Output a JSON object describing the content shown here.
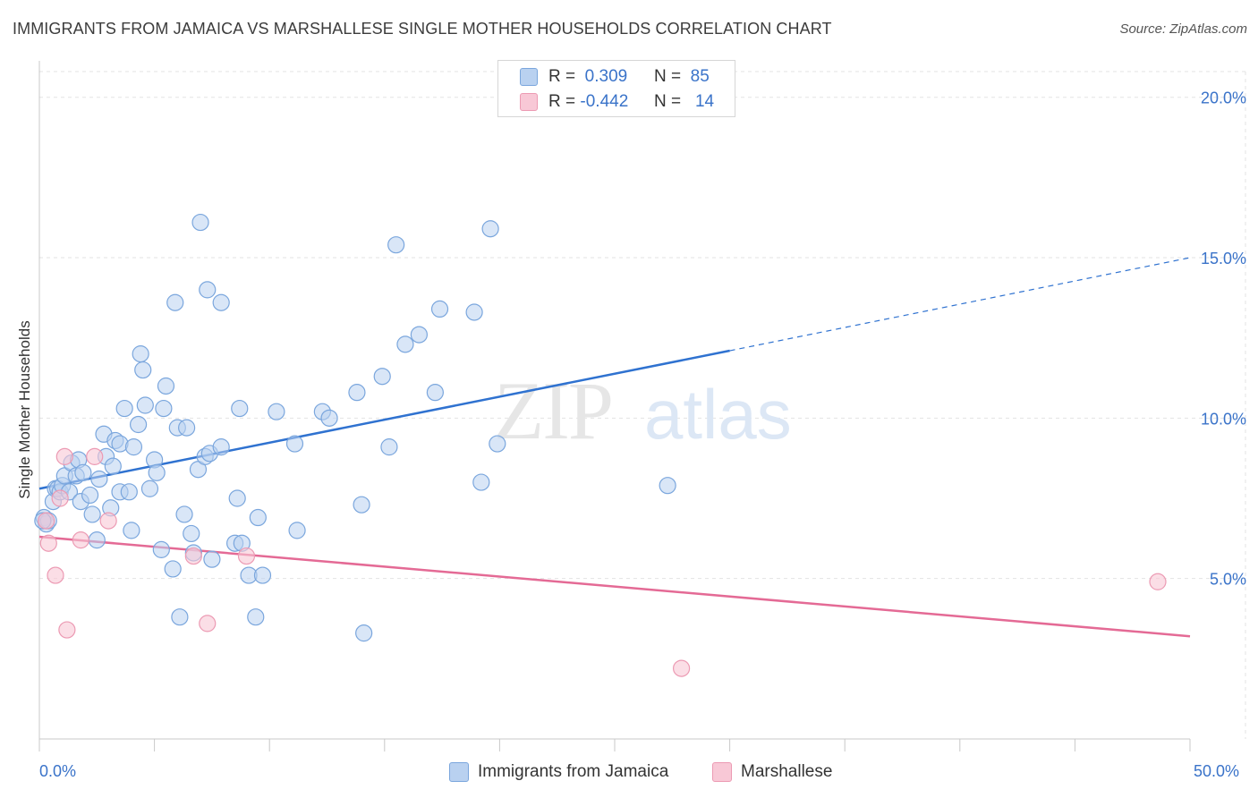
{
  "header": {
    "title": "IMMIGRANTS FROM JAMAICA VS MARSHALLESE SINGLE MOTHER HOUSEHOLDS CORRELATION CHART",
    "source": "Source: ZipAtlas.com"
  },
  "legend_top": {
    "row1": {
      "r_label": "R =",
      "r_value": "0.309",
      "n_label": "N =",
      "n_value": "85"
    },
    "row2": {
      "r_label": "R =",
      "r_value": "-0.442",
      "n_label": "N =",
      "n_value": "14"
    }
  },
  "watermark": {
    "part1": "ZIP",
    "part2": "atlas"
  },
  "colors": {
    "blue_fill": "#b9d1f0",
    "blue_stroke": "#7aa6dd",
    "blue_line": "#2f72d0",
    "pink_fill": "#f8c8d6",
    "pink_stroke": "#ec9ab3",
    "pink_line": "#e46a95",
    "axis_text": "#3a73c9",
    "grid": "#e3e3e3"
  },
  "chart_data": {
    "type": "scatter",
    "title": "IMMIGRANTS FROM JAMAICA VS MARSHALLESE SINGLE MOTHER HOUSEHOLDS CORRELATION CHART",
    "xlabel": "",
    "ylabel": "Single Mother Households",
    "xlim": [
      0,
      50
    ],
    "ylim": [
      0,
      20.8
    ],
    "x_tick_labels": [
      "0.0%",
      "50.0%"
    ],
    "y_ticks": [
      5,
      10,
      15,
      20
    ],
    "y_tick_labels": [
      "5.0%",
      "10.0%",
      "15.0%",
      "20.0%"
    ],
    "grid": true,
    "legend_position": "bottom",
    "series": [
      {
        "name": "Immigrants from Jamaica",
        "color": "#b9d1f0",
        "r": 0.309,
        "n": 85,
        "trend": {
          "x": [
            0,
            30
          ],
          "y": [
            7.8,
            12.1
          ],
          "dashed_extension": {
            "x": [
              30,
              50
            ],
            "y": [
              12.1,
              15.0
            ]
          }
        },
        "points": [
          [
            0.2,
            6.9
          ],
          [
            0.3,
            6.7
          ],
          [
            0.4,
            6.8
          ],
          [
            0.6,
            7.4
          ],
          [
            0.7,
            7.8
          ],
          [
            0.8,
            7.8
          ],
          [
            0.9,
            7.7
          ],
          [
            1.0,
            7.9
          ],
          [
            1.1,
            8.2
          ],
          [
            1.3,
            7.7
          ],
          [
            1.4,
            8.6
          ],
          [
            1.6,
            8.2
          ],
          [
            1.7,
            8.7
          ],
          [
            1.8,
            7.4
          ],
          [
            1.9,
            8.3
          ],
          [
            2.2,
            7.6
          ],
          [
            2.3,
            7.0
          ],
          [
            2.5,
            6.2
          ],
          [
            2.6,
            8.1
          ],
          [
            2.8,
            9.5
          ],
          [
            2.9,
            8.8
          ],
          [
            3.1,
            7.2
          ],
          [
            3.2,
            8.5
          ],
          [
            3.3,
            9.3
          ],
          [
            3.5,
            9.2
          ],
          [
            3.5,
            7.7
          ],
          [
            3.7,
            10.3
          ],
          [
            3.9,
            7.7
          ],
          [
            4.0,
            6.5
          ],
          [
            4.1,
            9.1
          ],
          [
            4.3,
            9.8
          ],
          [
            4.4,
            12.0
          ],
          [
            4.5,
            11.5
          ],
          [
            4.6,
            10.4
          ],
          [
            4.8,
            7.8
          ],
          [
            5.0,
            8.7
          ],
          [
            5.1,
            8.3
          ],
          [
            5.3,
            5.9
          ],
          [
            5.4,
            10.3
          ],
          [
            5.5,
            11.0
          ],
          [
            5.8,
            5.3
          ],
          [
            5.9,
            13.6
          ],
          [
            6.0,
            9.7
          ],
          [
            6.1,
            3.8
          ],
          [
            6.3,
            7.0
          ],
          [
            6.4,
            9.7
          ],
          [
            6.6,
            6.4
          ],
          [
            6.7,
            5.8
          ],
          [
            6.9,
            8.4
          ],
          [
            7.0,
            16.1
          ],
          [
            7.2,
            8.8
          ],
          [
            7.3,
            14.0
          ],
          [
            7.4,
            8.9
          ],
          [
            7.5,
            5.6
          ],
          [
            7.9,
            9.1
          ],
          [
            7.9,
            13.6
          ],
          [
            8.5,
            6.1
          ],
          [
            8.6,
            7.5
          ],
          [
            8.7,
            10.3
          ],
          [
            8.8,
            6.1
          ],
          [
            9.1,
            5.1
          ],
          [
            9.4,
            3.8
          ],
          [
            9.5,
            6.9
          ],
          [
            9.7,
            5.1
          ],
          [
            10.3,
            10.2
          ],
          [
            11.1,
            9.2
          ],
          [
            11.2,
            6.5
          ],
          [
            12.3,
            10.2
          ],
          [
            12.6,
            10.0
          ],
          [
            13.8,
            10.8
          ],
          [
            14.0,
            7.3
          ],
          [
            14.1,
            3.3
          ],
          [
            14.9,
            11.3
          ],
          [
            15.2,
            9.1
          ],
          [
            15.5,
            15.4
          ],
          [
            15.9,
            12.3
          ],
          [
            16.5,
            12.6
          ],
          [
            17.2,
            10.8
          ],
          [
            17.4,
            13.4
          ],
          [
            18.9,
            13.3
          ],
          [
            19.2,
            8.0
          ],
          [
            19.6,
            15.9
          ],
          [
            19.9,
            9.2
          ],
          [
            27.3,
            7.9
          ],
          [
            0.15,
            6.8
          ]
        ]
      },
      {
        "name": "Marshallese",
        "color": "#f8c8d6",
        "r": -0.442,
        "n": 14,
        "trend": {
          "x": [
            0,
            50
          ],
          "y": [
            6.3,
            3.2
          ]
        },
        "points": [
          [
            0.3,
            6.8
          ],
          [
            0.4,
            6.1
          ],
          [
            0.7,
            5.1
          ],
          [
            0.9,
            7.5
          ],
          [
            1.1,
            8.8
          ],
          [
            1.2,
            3.4
          ],
          [
            1.8,
            6.2
          ],
          [
            2.4,
            8.8
          ],
          [
            3.0,
            6.8
          ],
          [
            6.7,
            5.7
          ],
          [
            7.3,
            3.6
          ],
          [
            9.0,
            5.7
          ],
          [
            27.9,
            2.2
          ],
          [
            48.6,
            4.9
          ]
        ]
      }
    ]
  },
  "bottom_legend": {
    "item1": "Immigrants from Jamaica",
    "item2": "Marshallese"
  }
}
